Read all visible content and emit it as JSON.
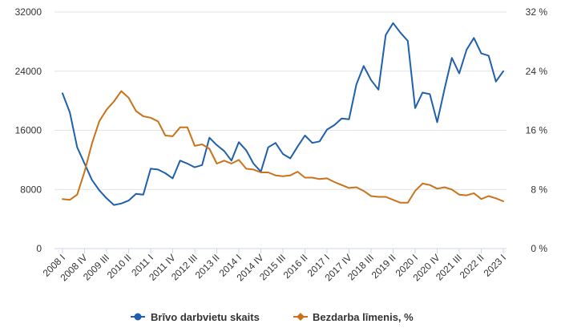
{
  "colors": {
    "vacancies": "#1f5fad",
    "unemployment": "#c8731a",
    "grid": "#e3e3e3",
    "axis": "#ccd6eb"
  },
  "chart_data": {
    "type": "line",
    "grid": true,
    "legend_position": "bottom-center",
    "y_left": {
      "min": 0,
      "max": 32000,
      "ticks": [
        "0",
        "8000",
        "16000",
        "24000",
        "32000"
      ]
    },
    "y_right": {
      "min": 0,
      "max": 32,
      "ticks": [
        "0 %",
        "8 %",
        "16 %",
        "24 %",
        "32 %"
      ]
    },
    "x_tick_labels": [
      "2008 I",
      "2008 IV",
      "2009 III",
      "2010 II",
      "2011 I",
      "2011 IV",
      "2012 III",
      "2013 II",
      "2014 I",
      "2014 IV",
      "2015 III",
      "2016 II",
      "2017 I",
      "2017 IV",
      "2018 III",
      "2019 II",
      "2020 I",
      "2020 IV",
      "2021 III",
      "2022 II",
      "2023 I"
    ],
    "x": [
      "2008 I",
      "2008 II",
      "2008 III",
      "2008 IV",
      "2009 I",
      "2009 II",
      "2009 III",
      "2009 IV",
      "2010 I",
      "2010 II",
      "2010 III",
      "2010 IV",
      "2011 I",
      "2011 II",
      "2011 III",
      "2011 IV",
      "2012 I",
      "2012 II",
      "2012 III",
      "2012 IV",
      "2013 I",
      "2013 II",
      "2013 III",
      "2013 IV",
      "2014 I",
      "2014 II",
      "2014 III",
      "2014 IV",
      "2015 I",
      "2015 II",
      "2015 III",
      "2015 IV",
      "2016 I",
      "2016 II",
      "2016 III",
      "2016 IV",
      "2017 I",
      "2017 II",
      "2017 III",
      "2017 IV",
      "2018 I",
      "2018 II",
      "2018 III",
      "2018 IV",
      "2019 I",
      "2019 II",
      "2019 III",
      "2019 IV",
      "2020 I",
      "2020 II",
      "2020 III",
      "2020 IV",
      "2021 I",
      "2021 II",
      "2021 III",
      "2021 IV",
      "2022 I",
      "2022 II",
      "2022 III",
      "2022 IV",
      "2023 I"
    ],
    "series": [
      {
        "name": "Brīvo darbvietu skaits",
        "axis": "left",
        "values": [
          21000,
          18400,
          13700,
          11500,
          9300,
          7900,
          6800,
          5900,
          6100,
          6500,
          7400,
          7300,
          10800,
          10700,
          10200,
          9500,
          11900,
          11500,
          11000,
          11300,
          15000,
          14000,
          13200,
          11900,
          14400,
          13300,
          11500,
          10400,
          13700,
          14300,
          12800,
          12200,
          13800,
          15300,
          14300,
          14500,
          16100,
          16700,
          17600,
          17500,
          22200,
          24700,
          22800,
          21500,
          28900,
          30500,
          29200,
          28100,
          19000,
          21100,
          20900,
          17100,
          21600,
          25800,
          23700,
          26900,
          28500,
          26400,
          26100,
          22600,
          24000
        ]
      },
      {
        "name": "Bezdarba līmenis, %",
        "axis": "right",
        "values": [
          6.7,
          6.6,
          7.3,
          10.4,
          14.2,
          17.2,
          18.8,
          19.9,
          21.3,
          20.4,
          18.6,
          17.9,
          17.7,
          17.2,
          15.3,
          15.2,
          16.4,
          16.4,
          13.9,
          14.1,
          13.5,
          11.5,
          11.9,
          11.5,
          12.0,
          10.8,
          10.7,
          10.3,
          10.3,
          9.9,
          9.8,
          9.9,
          10.4,
          9.6,
          9.6,
          9.4,
          9.5,
          9.0,
          8.6,
          8.2,
          8.3,
          7.8,
          7.1,
          7.0,
          7.0,
          6.6,
          6.2,
          6.2,
          7.8,
          8.8,
          8.6,
          8.1,
          8.3,
          8.0,
          7.3,
          7.2,
          7.5,
          6.7,
          7.1,
          6.8,
          6.4
        ]
      }
    ]
  }
}
